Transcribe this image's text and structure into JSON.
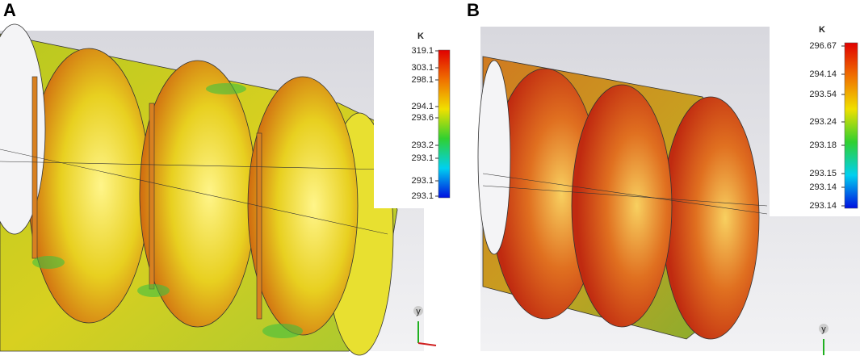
{
  "panels": [
    {
      "label": "A",
      "unit": "K",
      "scale_labels": [
        "319.1",
        "303.1",
        "298.1",
        "294.1",
        "293.6",
        "293.2",
        "293.1",
        "293.1",
        "293.1"
      ],
      "axis_label": "y"
    },
    {
      "label": "B",
      "unit": "K",
      "scale_labels": [
        "296.67",
        "294.14",
        "293.54",
        "293.24",
        "293.18",
        "293.15",
        "293.14",
        "293.14"
      ],
      "axis_label": "y"
    }
  ]
}
